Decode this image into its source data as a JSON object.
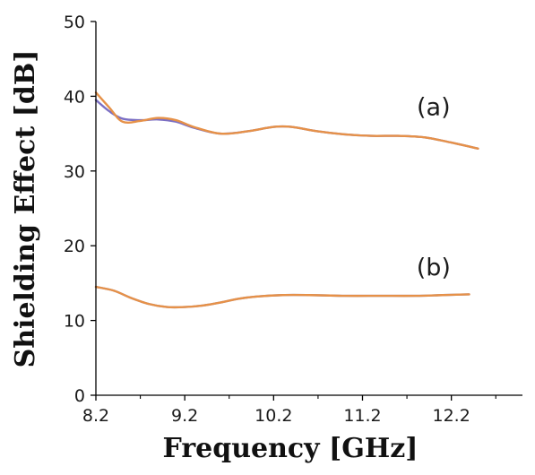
{
  "chart_data": {
    "type": "line",
    "xlabel": "Frequency [GHz]",
    "ylabel": "Shielding Effect [dB]",
    "xlim": [
      8.2,
      13.0
    ],
    "ylim": [
      0,
      50
    ],
    "xticks": [
      "8.2",
      "9.2",
      "10.2",
      "11.2",
      "12.2"
    ],
    "yticks": [
      "0",
      "10",
      "20",
      "30",
      "40",
      "50"
    ],
    "grid": false,
    "colors": {
      "curve_a_blue": "#7b6fc4",
      "curve_a_orange": "#e69148",
      "curve_b_blue": "#8a8fd0",
      "curve_b_orange": "#e69148",
      "axis": "#000000"
    },
    "annotations": [
      {
        "text": "(a)",
        "x": 12.0,
        "y": 37.5
      },
      {
        "text": "(b)",
        "x": 12.0,
        "y": 16.0
      }
    ],
    "series": [
      {
        "x": [
          8.2,
          8.35,
          8.5,
          8.7,
          8.9,
          9.1,
          9.3,
          9.6,
          9.9,
          10.2,
          10.4,
          10.7,
          11.0,
          11.3,
          11.6,
          11.9,
          12.2,
          12.5
        ],
        "y": [
          39.5,
          38.0,
          37.0,
          36.8,
          36.9,
          36.6,
          35.8,
          35.0,
          35.3,
          35.9,
          35.9,
          35.3,
          34.9,
          34.7,
          34.7,
          34.5,
          33.8,
          33.0
        ]
      },
      {
        "x": [
          8.2,
          8.35,
          8.5,
          8.7,
          8.9,
          9.1,
          9.3,
          9.6,
          9.9,
          10.2,
          10.4,
          10.7,
          11.0,
          11.3,
          11.6,
          11.9,
          12.2,
          12.5
        ],
        "y": [
          40.5,
          38.5,
          36.6,
          36.7,
          37.1,
          36.8,
          35.9,
          35.0,
          35.3,
          35.9,
          35.9,
          35.3,
          34.9,
          34.7,
          34.7,
          34.5,
          33.8,
          33.0
        ]
      },
      {
        "x": [
          8.2,
          8.4,
          8.6,
          8.8,
          9.0,
          9.2,
          9.4,
          9.6,
          9.8,
          10.0,
          10.3,
          10.6,
          11.0,
          11.4,
          11.8,
          12.1,
          12.4
        ],
        "y": [
          14.5,
          14.0,
          13.0,
          12.2,
          11.8,
          11.8,
          12.0,
          12.4,
          12.9,
          13.2,
          13.4,
          13.4,
          13.3,
          13.3,
          13.3,
          13.4,
          13.5
        ]
      },
      {
        "x": [
          8.2,
          8.4,
          8.6,
          8.8,
          9.0,
          9.2,
          9.4,
          9.6,
          9.8,
          10.0,
          10.3,
          10.6,
          11.0,
          11.4,
          11.8,
          12.1,
          12.4
        ],
        "y": [
          14.5,
          14.0,
          13.0,
          12.2,
          11.8,
          11.8,
          12.0,
          12.4,
          12.9,
          13.2,
          13.4,
          13.4,
          13.3,
          13.3,
          13.3,
          13.4,
          13.5
        ]
      }
    ]
  }
}
